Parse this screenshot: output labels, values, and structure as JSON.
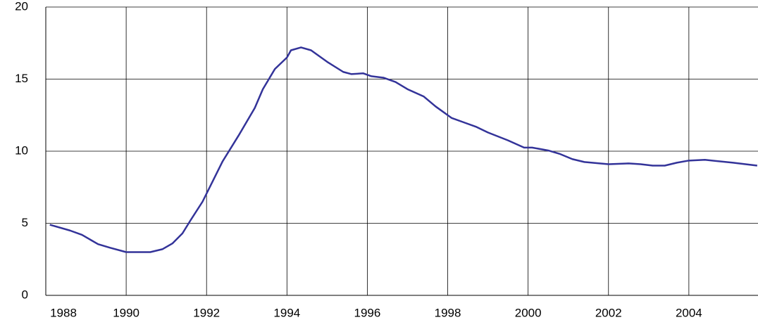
{
  "chart_data": {
    "type": "line",
    "x": [
      1988.1,
      1988.6,
      1988.9,
      1989.3,
      1989.6,
      1990.0,
      1990.6,
      1990.9,
      1991.15,
      1991.4,
      1991.6,
      1991.9,
      1992.4,
      1992.8,
      1993.2,
      1993.4,
      1993.7,
      1994.0,
      1994.1,
      1994.35,
      1994.6,
      1995.0,
      1995.4,
      1995.6,
      1995.9,
      1996.1,
      1996.4,
      1996.7,
      1997.0,
      1997.4,
      1997.7,
      1998.1,
      1998.4,
      1998.7,
      1999.0,
      1999.5,
      1999.9,
      2000.1,
      2000.5,
      2000.8,
      2001.1,
      2001.4,
      2002.0,
      2002.5,
      2002.8,
      2003.1,
      2003.4,
      2003.7,
      2004.0,
      2004.4,
      2005.1,
      2005.7
    ],
    "series": [
      {
        "color": "#333399",
        "values": [
          4.9,
          4.5,
          4.2,
          3.55,
          3.3,
          3.0,
          3.0,
          3.2,
          3.6,
          4.3,
          5.2,
          6.5,
          9.3,
          11.1,
          13.0,
          14.3,
          15.7,
          16.5,
          17.0,
          17.2,
          17.0,
          16.2,
          15.5,
          15.35,
          15.4,
          15.2,
          15.1,
          14.8,
          14.3,
          13.8,
          13.1,
          12.3,
          12.0,
          11.7,
          11.3,
          10.75,
          10.25,
          10.25,
          10.05,
          9.8,
          9.45,
          9.25,
          9.1,
          9.15,
          9.1,
          9.0,
          9.0,
          9.2,
          9.35,
          9.4,
          9.2,
          9.0
        ]
      }
    ],
    "xlim": [
      1988,
      2005.72
    ],
    "xticks": [
      1988,
      1990,
      1992,
      1994,
      1996,
      1998,
      2000,
      2002,
      2004
    ],
    "ylim": [
      0,
      20
    ],
    "yticks": [
      0,
      5,
      10,
      15,
      20
    ],
    "grid": true
  }
}
